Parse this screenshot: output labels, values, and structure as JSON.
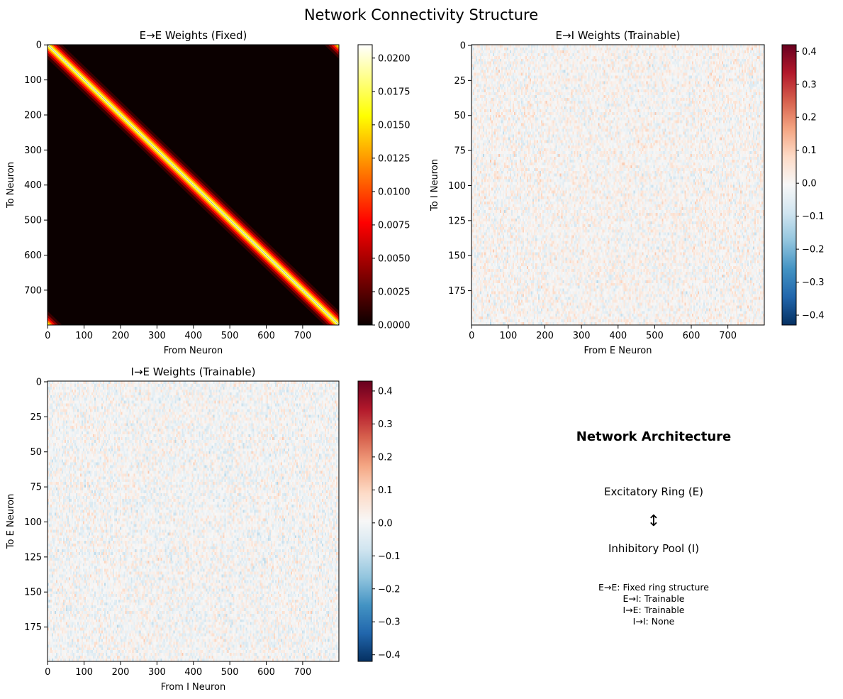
{
  "figure": {
    "title": "Network Connectivity Structure"
  },
  "chart_data": [
    {
      "type": "heatmap",
      "title": "E→E Weights (Fixed)",
      "xlabel": "From Neuron",
      "ylabel": "To Neuron",
      "x_ticks": [
        0,
        100,
        200,
        300,
        400,
        500,
        600,
        700
      ],
      "y_ticks": [
        0,
        100,
        200,
        300,
        400,
        500,
        600,
        700
      ],
      "x_range": [
        0,
        799
      ],
      "y_range": [
        0,
        799
      ],
      "y_inverted": true,
      "matrix_shape": [
        800,
        800
      ],
      "pattern": "circulant ring band along the diagonal, wrapping at corners",
      "colormap": "hot",
      "colorbar": {
        "min": 0.0,
        "max": 0.021,
        "ticks": [
          "0.0000",
          "0.0025",
          "0.0050",
          "0.0075",
          "0.0100",
          "0.0125",
          "0.0150",
          "0.0175",
          "0.0200"
        ]
      }
    },
    {
      "type": "heatmap",
      "title": "E→I Weights (Trainable)",
      "xlabel": "From E Neuron",
      "ylabel": "To I Neuron",
      "x_ticks": [
        0,
        100,
        200,
        300,
        400,
        500,
        600,
        700
      ],
      "y_ticks": [
        0,
        25,
        50,
        75,
        100,
        125,
        150,
        175
      ],
      "x_range": [
        0,
        799
      ],
      "y_range": [
        0,
        199
      ],
      "y_inverted": true,
      "matrix_shape": [
        200,
        800
      ],
      "pattern": "random noise",
      "colormap": "RdBu_r",
      "colorbar": {
        "min": -0.43,
        "max": 0.42,
        "ticks": [
          "−0.4",
          "−0.3",
          "−0.2",
          "−0.1",
          "0.0",
          "0.1",
          "0.2",
          "0.3",
          "0.4"
        ]
      }
    },
    {
      "type": "heatmap",
      "title": "I→E Weights (Trainable)",
      "xlabel": "From I Neuron",
      "ylabel": "To E Neuron",
      "x_ticks": [
        0,
        100,
        200,
        300,
        400,
        500,
        600,
        700
      ],
      "y_ticks": [
        0,
        25,
        50,
        75,
        100,
        125,
        150,
        175
      ],
      "x_range": [
        0,
        799
      ],
      "y_range": [
        0,
        199
      ],
      "y_inverted": true,
      "matrix_shape": [
        200,
        800
      ],
      "pattern": "random noise",
      "colormap": "RdBu_r",
      "colorbar": {
        "min": -0.42,
        "max": 0.43,
        "ticks": [
          "−0.4",
          "−0.3",
          "−0.2",
          "−0.1",
          "0.0",
          "0.1",
          "0.2",
          "0.3",
          "0.4"
        ]
      }
    }
  ],
  "architecture": {
    "title": "Network Architecture",
    "excitatory_label": "Excitatory Ring (E)",
    "excitatory_color": "#0000ff",
    "arrow": "↕",
    "inhibitory_label": "Inhibitory Pool (I)",
    "inhibitory_color": "#ff0000",
    "notes": [
      "E→E: Fixed ring structure",
      "E→I: Trainable",
      "I→E: Trainable",
      "I→I: None"
    ]
  }
}
